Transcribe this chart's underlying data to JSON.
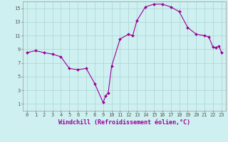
{
  "data_points": [
    [
      0,
      8.5
    ],
    [
      1,
      8.8
    ],
    [
      2,
      8.5
    ],
    [
      3,
      8.3
    ],
    [
      4,
      7.9
    ],
    [
      5,
      6.2
    ],
    [
      6,
      6.0
    ],
    [
      7,
      6.2
    ],
    [
      8,
      4.0
    ],
    [
      9,
      1.2
    ],
    [
      9.3,
      2.2
    ],
    [
      9.6,
      2.6
    ],
    [
      10,
      6.5
    ],
    [
      11,
      10.5
    ],
    [
      12,
      11.2
    ],
    [
      12.5,
      11.0
    ],
    [
      13,
      13.2
    ],
    [
      14,
      15.2
    ],
    [
      15,
      15.6
    ],
    [
      16,
      15.6
    ],
    [
      17,
      15.2
    ],
    [
      18,
      14.5
    ],
    [
      19,
      12.2
    ],
    [
      20,
      11.2
    ],
    [
      21,
      11.0
    ],
    [
      21.5,
      10.8
    ],
    [
      22,
      9.3
    ],
    [
      22.3,
      9.2
    ],
    [
      22.7,
      9.5
    ],
    [
      23,
      8.5
    ]
  ],
  "line_color": "#990099",
  "marker_color": "#990099",
  "bg_color": "#cff0f0",
  "grid_color": "#b0d8d8",
  "xlabel": "Windchill (Refroidissement éolien,°C)",
  "xlabel_color": "#990099",
  "ylim": [
    0,
    16
  ],
  "xlim_min": -0.5,
  "xlim_max": 23.5,
  "yticks": [
    1,
    3,
    5,
    7,
    9,
    11,
    13,
    15
  ],
  "xticks": [
    0,
    1,
    2,
    3,
    4,
    5,
    6,
    7,
    8,
    9,
    10,
    11,
    12,
    13,
    14,
    15,
    16,
    17,
    18,
    19,
    20,
    21,
    22,
    23
  ],
  "tick_fontsize": 5.0,
  "xlabel_fontsize": 6.0,
  "linewidth": 0.8,
  "markersize": 2.0
}
